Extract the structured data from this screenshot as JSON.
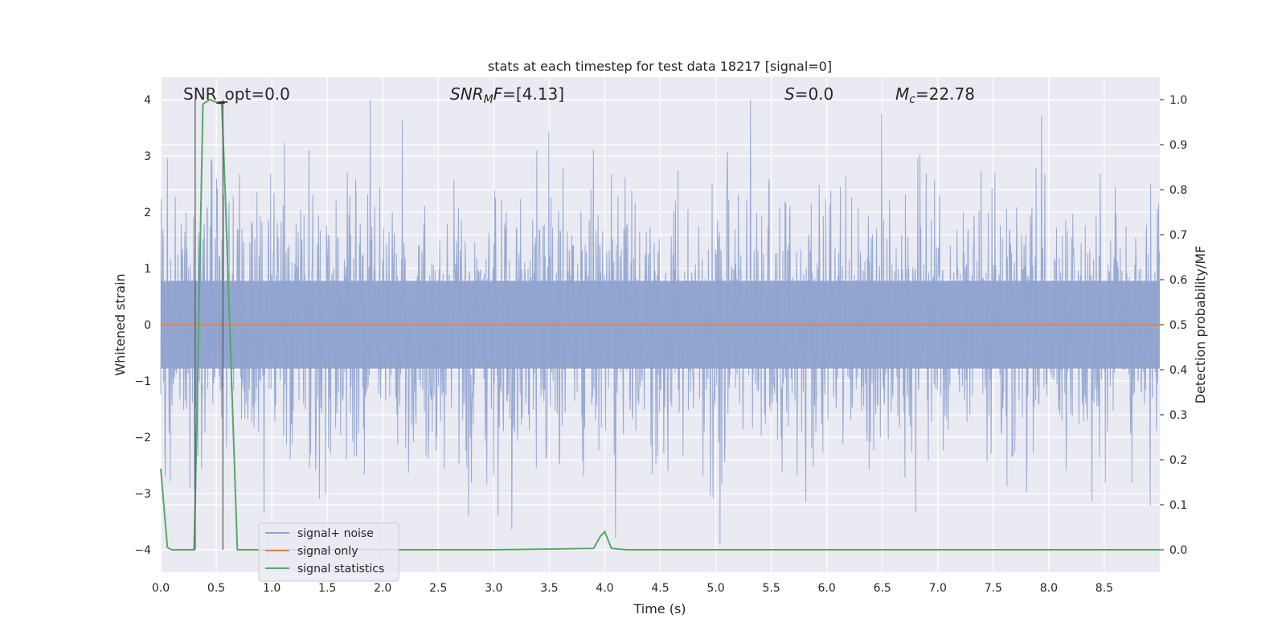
{
  "chart_data": {
    "type": "line",
    "title": "stats at each timestep for test data 18217 [signal=0]",
    "xlabel": "Time (s)",
    "ylabel": "Whitened strain",
    "ylabel_right": "Detection probability/MF",
    "xlim": [
      0.0,
      9.0
    ],
    "ylim": [
      -4.4,
      4.4
    ],
    "ylim_right": [
      -0.05,
      1.05
    ],
    "x_ticks": [
      "0.0",
      "0.5",
      "1.0",
      "1.5",
      "2.0",
      "2.5",
      "3.0",
      "3.5",
      "4.0",
      "4.5",
      "5.0",
      "5.5",
      "6.0",
      "6.5",
      "7.0",
      "7.5",
      "8.0",
      "8.5"
    ],
    "y_ticks": [
      "4",
      "3",
      "2",
      "1",
      "0",
      "−1",
      "−2",
      "−3",
      "−4"
    ],
    "y_ticks_right": [
      "1.0",
      "0.9",
      "0.8",
      "0.7",
      "0.6",
      "0.5",
      "0.4",
      "0.3",
      "0.2",
      "0.1",
      "0.0"
    ],
    "grid": true,
    "legend_position": "lower-left",
    "annotations": {
      "snr_opt": "SNR_opt=0.0",
      "snr_mf_main": "SNR",
      "snr_mf_sub": "M",
      "snr_mf_f": "F",
      "snr_mf_value": "=[4.13]",
      "s_var": "S",
      "s_value": "=0.0",
      "mc_var": "M",
      "mc_sub": "c",
      "mc_value": "=22.78"
    },
    "series": [
      {
        "name": "signal+ noise",
        "color": "#8fa3cf",
        "description_range": [
          -3.9,
          4.0
        ]
      },
      {
        "name": "signal only",
        "color": "#dd8452",
        "x": [
          0.0,
          9.0
        ],
        "y": [
          0.0,
          0.0
        ]
      },
      {
        "name": "signal statistics",
        "color": "#55a868",
        "axis": "right",
        "x": [
          0.0,
          0.06,
          0.1,
          0.2,
          0.3,
          0.31,
          0.38,
          0.44,
          0.55,
          0.58,
          0.69,
          0.75,
          1.0,
          2.0,
          3.0,
          3.9,
          3.96,
          4.0,
          4.06,
          4.2,
          5.0,
          6.0,
          7.0,
          8.0,
          9.0
        ],
        "y": [
          0.18,
          0.005,
          0.0,
          0.0,
          0.0,
          0.1,
          0.99,
          1.0,
          0.99,
          0.8,
          0.0,
          0.0,
          0.0,
          0.0,
          0.0,
          0.003,
          0.03,
          0.04,
          0.003,
          0.0,
          0.0,
          0.0,
          0.0,
          0.0,
          0.0
        ]
      }
    ],
    "markers": [
      {
        "type": "vertical-line",
        "x": 0.31,
        "y_from": -4.0,
        "y_to": 4.0
      },
      {
        "type": "vertical-line",
        "x": 0.56,
        "y_from": -4.0,
        "y_to": 4.0
      }
    ],
    "colors": {
      "plot_bg": "#eaeaf2",
      "grid": "#ffffff",
      "text": "#262626"
    }
  }
}
